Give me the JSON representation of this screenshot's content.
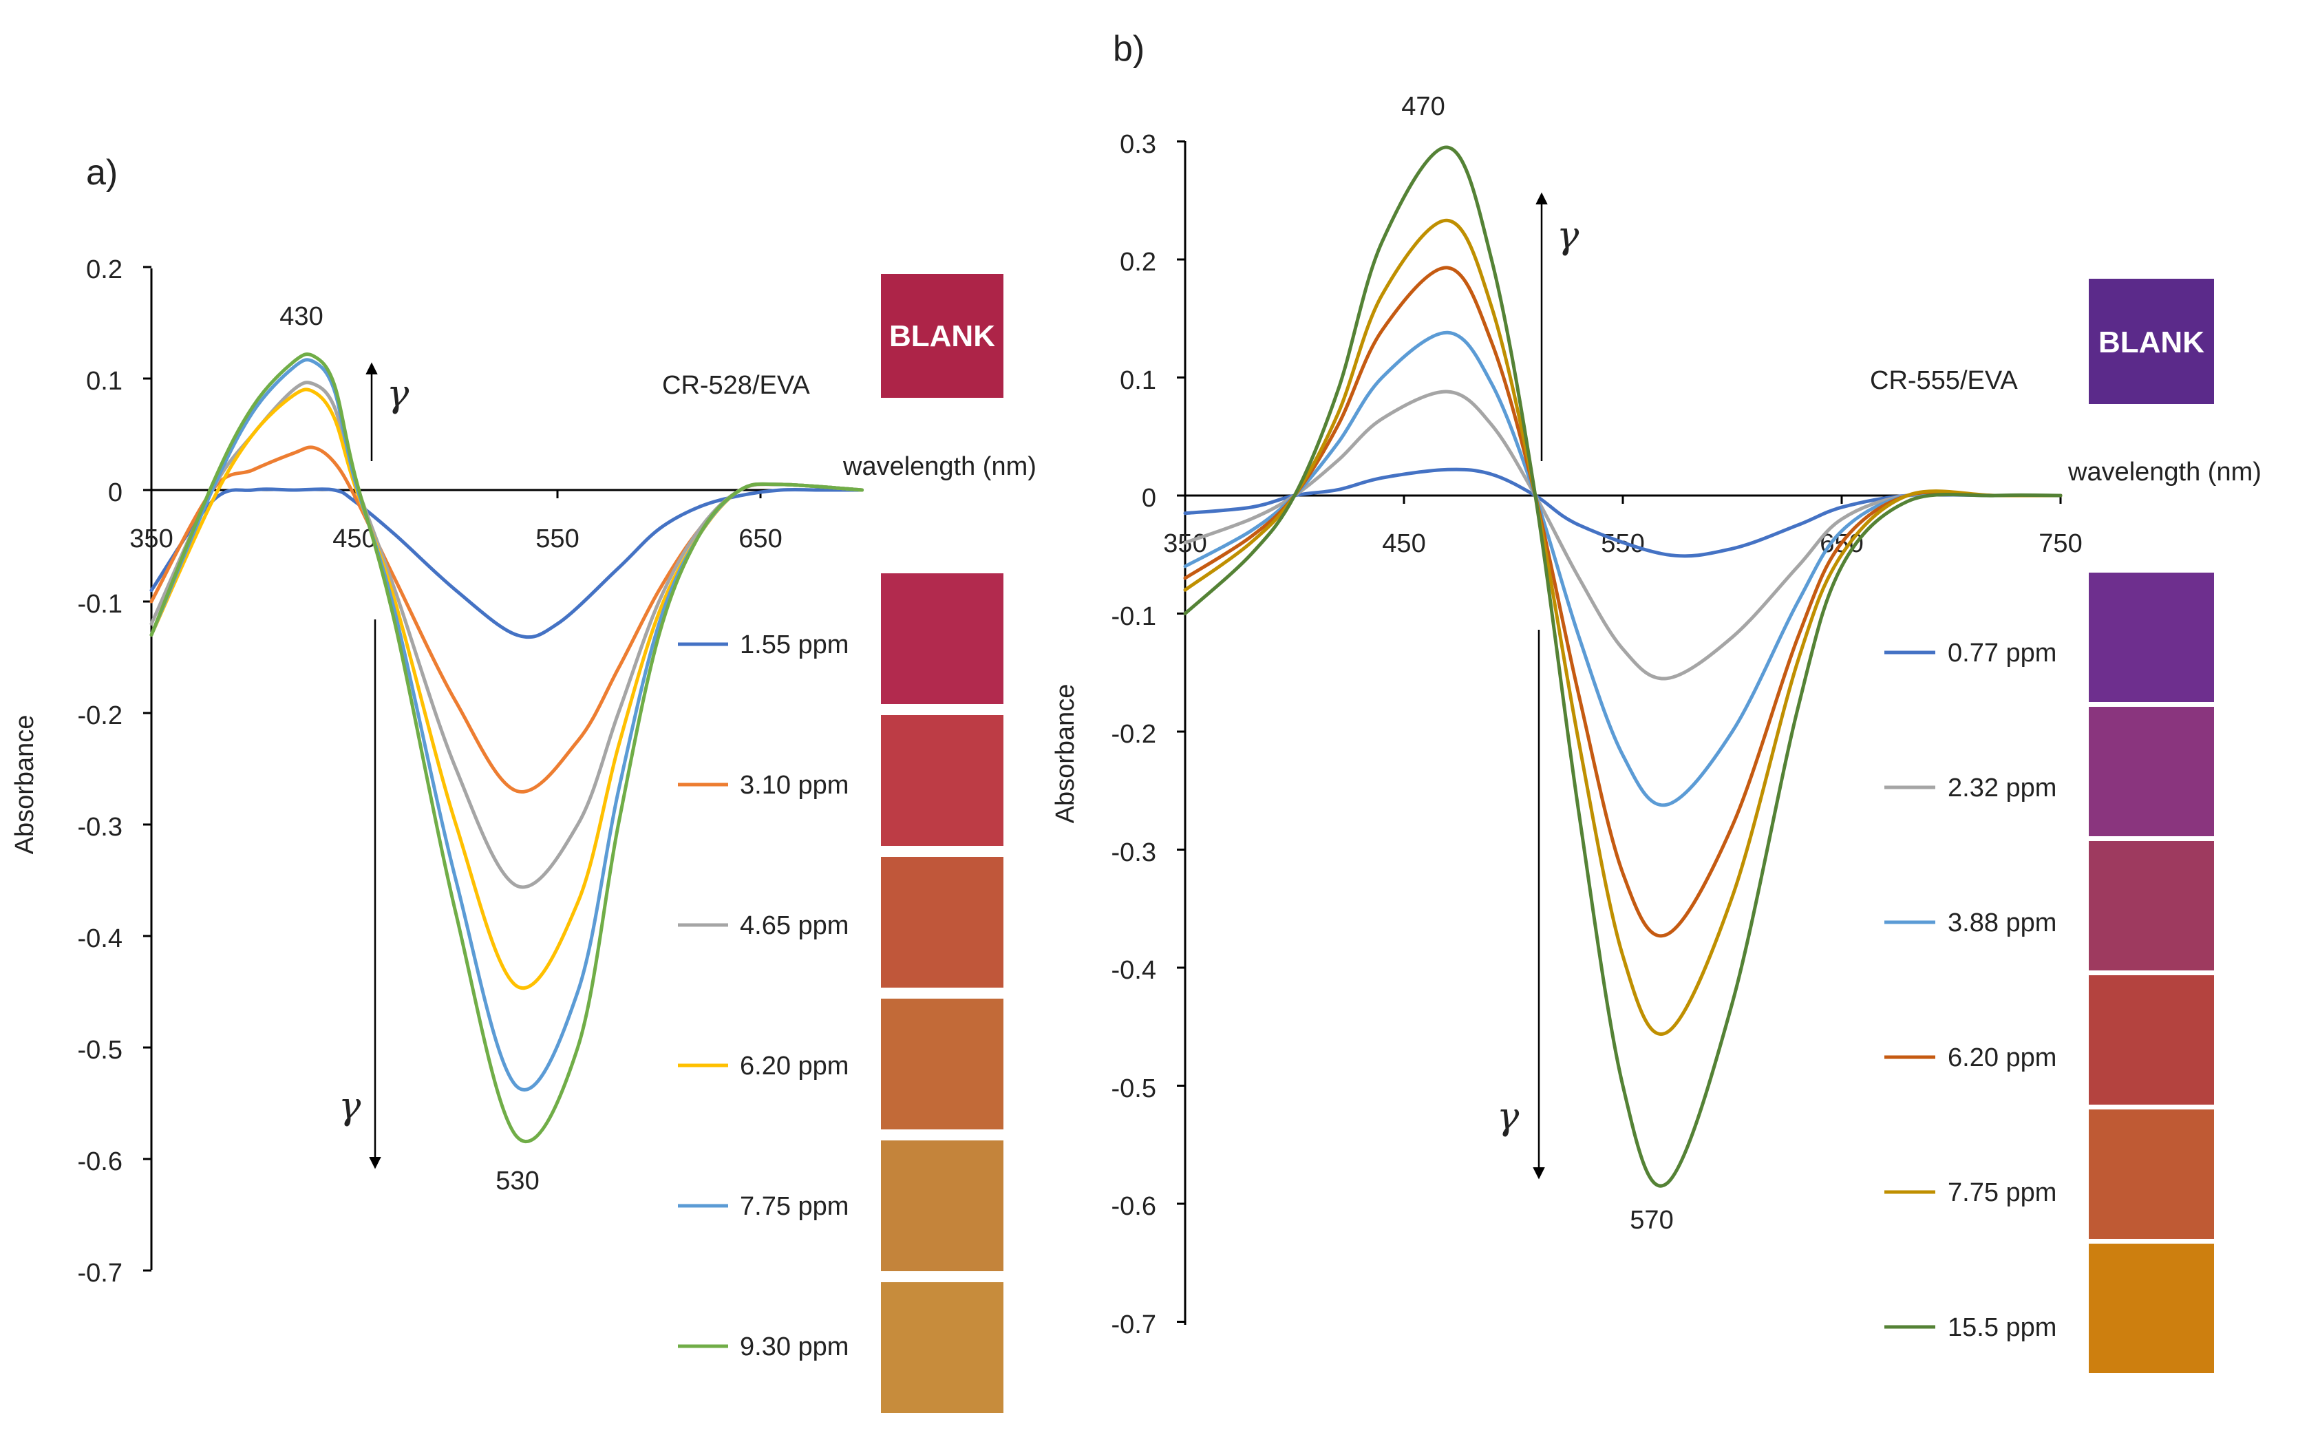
{
  "chart_data": [
    {
      "type": "line",
      "panel_label": "a)",
      "sample": "CR-528/EVA",
      "xlabel": "wavelength (nm)",
      "ylabel": "Absorbance",
      "xlim": [
        350,
        700
      ],
      "ylim": [
        -0.7,
        0.2
      ],
      "x_ticks": [
        "350",
        "450",
        "550",
        "650"
      ],
      "y_ticks": [
        "0.2",
        "0.1",
        "0",
        "-0.1",
        "-0.2",
        "-0.3",
        "-0.4",
        "-0.5",
        "-0.6",
        "-0.7"
      ],
      "peak_labels": {
        "max": "430",
        "min": "530"
      },
      "annotation": "γ",
      "blank_label": "BLANK",
      "blank_color": "#ad2448",
      "swatch_colors": [
        "#b22a4e",
        "#bd3c45",
        "#c0573a",
        "#c26a38",
        "#c4843b",
        "#c78c3c"
      ],
      "series": [
        {
          "name": "1.55 ppm",
          "color": "#4472c4",
          "x": [
            350,
            380,
            400,
            420,
            440,
            450,
            470,
            500,
            530,
            550,
            580,
            600,
            620,
            640,
            660,
            680,
            700
          ],
          "y": [
            -0.09,
            -0.01,
            0.0,
            0.0,
            0.0,
            -0.01,
            -0.04,
            -0.09,
            -0.13,
            -0.12,
            -0.07,
            -0.035,
            -0.015,
            -0.005,
            0.0,
            0.0,
            0.0
          ]
        },
        {
          "name": "3.10 ppm",
          "color": "#ed7d31",
          "x": [
            350,
            380,
            400,
            420,
            430,
            440,
            450,
            470,
            500,
            530,
            560,
            580,
            600,
            620,
            640,
            660,
            700
          ],
          "y": [
            -0.1,
            0.0,
            0.018,
            0.033,
            0.038,
            0.025,
            -0.005,
            -0.08,
            -0.19,
            -0.27,
            -0.225,
            -0.16,
            -0.09,
            -0.035,
            0.0,
            0.005,
            0.0
          ]
        },
        {
          "name": "4.65 ppm",
          "color": "#a5a5a5",
          "x": [
            350,
            380,
            400,
            420,
            430,
            440,
            450,
            470,
            500,
            530,
            560,
            580,
            600,
            620,
            640,
            660,
            700
          ],
          "y": [
            -0.12,
            0.0,
            0.05,
            0.09,
            0.095,
            0.075,
            0.01,
            -0.09,
            -0.25,
            -0.355,
            -0.3,
            -0.2,
            -0.1,
            -0.035,
            0.0,
            0.005,
            0.0
          ]
        },
        {
          "name": "6.20 ppm",
          "color": "#ffc000",
          "x": [
            350,
            380,
            400,
            420,
            430,
            440,
            450,
            470,
            500,
            530,
            560,
            580,
            600,
            620,
            640,
            660,
            700
          ],
          "y": [
            -0.13,
            -0.01,
            0.05,
            0.085,
            0.088,
            0.065,
            0.005,
            -0.1,
            -0.3,
            -0.445,
            -0.37,
            -0.23,
            -0.11,
            -0.04,
            0.0,
            0.005,
            0.0
          ]
        },
        {
          "name": "7.75 ppm",
          "color": "#5b9bd5",
          "x": [
            350,
            380,
            400,
            420,
            430,
            440,
            450,
            470,
            500,
            530,
            560,
            580,
            600,
            620,
            640,
            660,
            700
          ],
          "y": [
            -0.13,
            0.0,
            0.07,
            0.11,
            0.115,
            0.09,
            0.01,
            -0.11,
            -0.35,
            -0.535,
            -0.45,
            -0.27,
            -0.12,
            -0.04,
            0.0,
            0.005,
            0.0
          ]
        },
        {
          "name": "9.30 ppm",
          "color": "#70ad47",
          "x": [
            350,
            380,
            400,
            420,
            430,
            440,
            450,
            470,
            500,
            530,
            560,
            580,
            600,
            620,
            640,
            660,
            700
          ],
          "y": [
            -0.13,
            0.005,
            0.075,
            0.115,
            0.12,
            0.095,
            0.015,
            -0.12,
            -0.38,
            -0.58,
            -0.5,
            -0.3,
            -0.13,
            -0.04,
            0.0,
            0.005,
            0.0
          ]
        }
      ]
    },
    {
      "type": "line",
      "panel_label": "b)",
      "sample": "CR-555/EVA",
      "xlabel": "wavelength (nm)",
      "ylabel": "Absorbance",
      "xlim": [
        350,
        750
      ],
      "ylim": [
        -0.7,
        0.3
      ],
      "x_ticks": [
        "350",
        "450",
        "550",
        "650",
        "750"
      ],
      "y_ticks": [
        "0.3",
        "0.2",
        "0.1",
        "0",
        "-0.1",
        "-0.2",
        "-0.3",
        "-0.4",
        "-0.5",
        "-0.6",
        "-0.7"
      ],
      "peak_labels": {
        "max": "470",
        "min": "570"
      },
      "annotation": "γ",
      "blank_label": "BLANK",
      "blank_color": "#5b2a8a",
      "swatch_colors": [
        "#6e2f8e",
        "#8a357e",
        "#9e3a5f",
        "#b4433f",
        "#bf5a34",
        "#cd7f0f"
      ],
      "series": [
        {
          "name": "0.77 ppm",
          "color": "#4472c4",
          "x": [
            350,
            380,
            400,
            420,
            440,
            470,
            490,
            510,
            530,
            570,
            600,
            630,
            650,
            680,
            720,
            750
          ],
          "y": [
            -0.015,
            -0.01,
            0.0,
            0.005,
            0.015,
            0.022,
            0.018,
            0.0,
            -0.025,
            -0.05,
            -0.045,
            -0.025,
            -0.01,
            0.0,
            0.0,
            0.0
          ]
        },
        {
          "name": "2.32 ppm",
          "color": "#a5a5a5",
          "x": [
            350,
            380,
            400,
            420,
            440,
            470,
            490,
            510,
            530,
            550,
            570,
            600,
            630,
            650,
            680,
            720,
            750
          ],
          "y": [
            -0.04,
            -0.02,
            0.0,
            0.03,
            0.065,
            0.088,
            0.06,
            0.0,
            -0.07,
            -0.13,
            -0.155,
            -0.12,
            -0.06,
            -0.02,
            0.0,
            0.0,
            0.0
          ]
        },
        {
          "name": "3.88 ppm",
          "color": "#5b9bd5",
          "x": [
            350,
            380,
            400,
            420,
            440,
            470,
            490,
            510,
            530,
            550,
            570,
            600,
            630,
            650,
            680,
            720,
            750
          ],
          "y": [
            -0.06,
            -0.03,
            0.0,
            0.045,
            0.1,
            0.138,
            0.095,
            0.0,
            -0.12,
            -0.22,
            -0.262,
            -0.2,
            -0.09,
            -0.03,
            0.0,
            0.0,
            0.0
          ]
        },
        {
          "name": "6.20 ppm",
          "color": "#c55a11",
          "x": [
            350,
            380,
            400,
            420,
            440,
            470,
            490,
            510,
            530,
            550,
            570,
            600,
            630,
            650,
            680,
            720,
            750
          ],
          "y": [
            -0.07,
            -0.035,
            0.0,
            0.06,
            0.14,
            0.193,
            0.13,
            0.0,
            -0.17,
            -0.32,
            -0.372,
            -0.28,
            -0.12,
            -0.04,
            0.0,
            0.0,
            0.0
          ]
        },
        {
          "name": "7.75 ppm",
          "color": "#bf8f00",
          "x": [
            350,
            380,
            400,
            420,
            440,
            470,
            490,
            510,
            530,
            550,
            570,
            600,
            630,
            650,
            680,
            720,
            750
          ],
          "y": [
            -0.08,
            -0.04,
            0.0,
            0.07,
            0.17,
            0.233,
            0.16,
            0.0,
            -0.21,
            -0.39,
            -0.455,
            -0.34,
            -0.14,
            -0.05,
            0.0,
            0.0,
            0.0
          ]
        },
        {
          "name": "15.5 ppm",
          "color": "#548235",
          "x": [
            350,
            380,
            400,
            420,
            440,
            470,
            490,
            510,
            530,
            550,
            570,
            600,
            630,
            650,
            680,
            720,
            750
          ],
          "y": [
            -0.1,
            -0.05,
            0.0,
            0.09,
            0.215,
            0.295,
            0.2,
            0.0,
            -0.27,
            -0.5,
            -0.583,
            -0.43,
            -0.18,
            -0.06,
            -0.005,
            0.0,
            0.0
          ]
        }
      ]
    }
  ]
}
